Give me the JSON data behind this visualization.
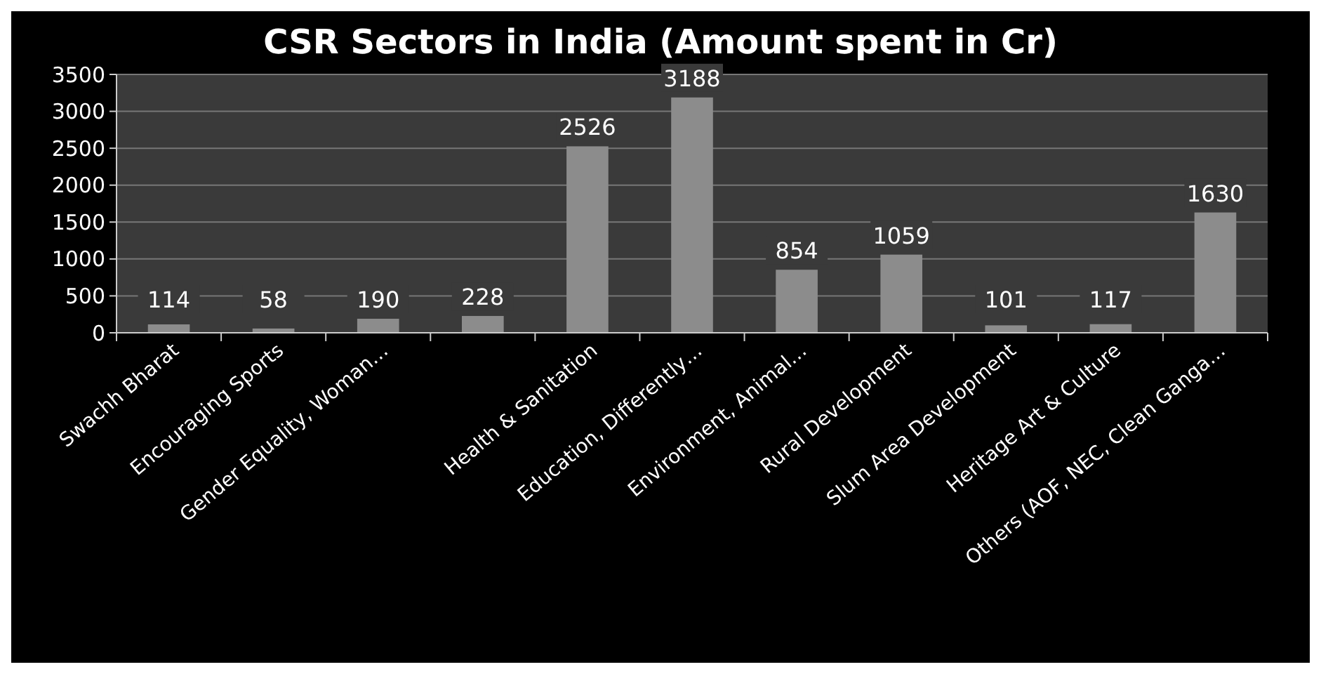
{
  "chart_data": {
    "type": "bar",
    "title": "CSR Sectors in India (Amount spent in Cr)",
    "categories": [
      "Swachh Bharat",
      "Encouraging Sports",
      "Gender Equality, Woman…",
      null,
      "Health & Sanitation",
      "Education, Differently…",
      "Environment, Animal…",
      "Rural Development",
      "Slum Area Development",
      "Heritage Art & Culture",
      "Others (AOF, NEC, Clean Ganga…"
    ],
    "values": [
      114,
      58,
      190,
      228,
      2526,
      3188,
      854,
      1059,
      101,
      117,
      1630
    ],
    "color": "#8c8c8c",
    "ylim": [
      0,
      3500
    ],
    "yticks": [
      0,
      500,
      1000,
      1500,
      2000,
      2500,
      3000,
      3500
    ],
    "grid": "y",
    "data_labels": true
  }
}
